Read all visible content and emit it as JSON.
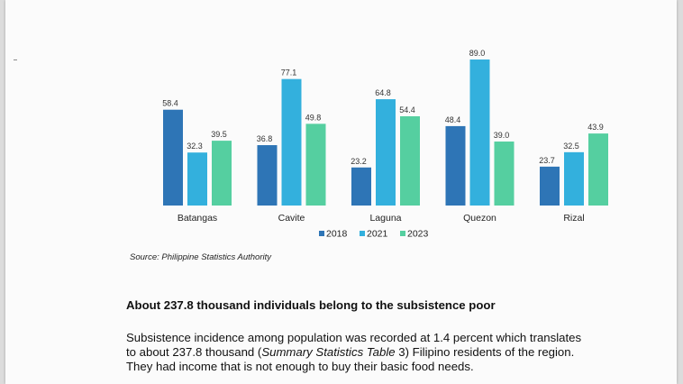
{
  "chart_data": {
    "type": "bar",
    "categories": [
      "Batangas",
      "Cavite",
      "Laguna",
      "Quezon",
      "Rizal"
    ],
    "series": [
      {
        "name": "2018",
        "color": "#2e75b6",
        "values": [
          58.4,
          36.8,
          23.2,
          48.4,
          23.7
        ]
      },
      {
        "name": "2021",
        "color": "#33b0dd",
        "values": [
          32.3,
          77.1,
          64.8,
          89.0,
          32.5
        ]
      },
      {
        "name": "2023",
        "color": "#55cfa0",
        "values": [
          39.5,
          49.8,
          54.4,
          39.0,
          43.9
        ]
      }
    ],
    "value_labels": [
      [
        "58.4",
        "32.3",
        "39.5"
      ],
      [
        "36.8",
        "77.1",
        "49.8"
      ],
      [
        "23.2",
        "64.8",
        "54.4"
      ],
      [
        "48.4",
        "89.0",
        "39.0"
      ],
      [
        "23.7",
        "32.5",
        "43.9"
      ]
    ],
    "ylim": [
      0,
      100
    ],
    "grid": false,
    "legend_position": "bottom"
  },
  "source": "Source:  Philippine Statistics Authority",
  "heading": "About 237.8 thousand individuals belong to the subsistence poor",
  "paragraph": {
    "line1": "Subsistence incidence among population was recorded at 1.4 percent which translates",
    "line2_pre": "to about 237.8 thousand (",
    "line2_italic": "Summary Statistics Table",
    "line2_post": " 3) Filipino residents of the region.",
    "line3": "They had income that is not enough to buy their basic food needs."
  }
}
